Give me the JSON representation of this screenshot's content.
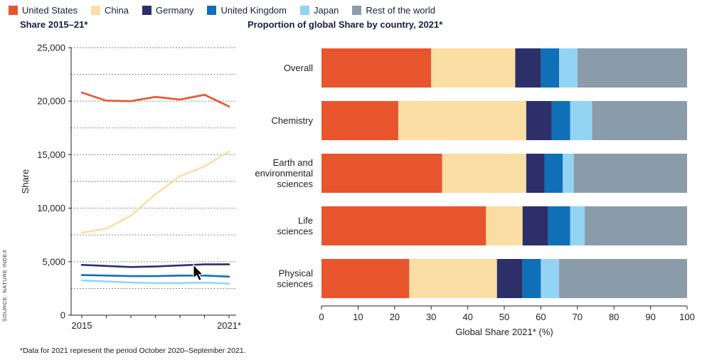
{
  "legend": {
    "items": [
      {
        "label": "United States",
        "color": "#E8552D"
      },
      {
        "label": "China",
        "color": "#FADEA3"
      },
      {
        "label": "Germany",
        "color": "#2C2F68"
      },
      {
        "label": "United Kingdom",
        "color": "#0F70B7"
      },
      {
        "label": "Japan",
        "color": "#93D4F4"
      },
      {
        "label": "Rest of the world",
        "color": "#8A9CAA"
      }
    ]
  },
  "source": "SOURCE: NATURE INDEX",
  "footnote": "*Data for 2021 represent the period October 2020–September 2021.",
  "chart_data": [
    {
      "type": "line",
      "title": "Share 2015–21*",
      "ylabel": "Share",
      "x": [
        2015,
        2016,
        2017,
        2018,
        2019,
        2020,
        2021
      ],
      "x_tick_labels": [
        "2015",
        "2021*"
      ],
      "ylim": [
        0,
        25000
      ],
      "y_ticks": [
        0,
        5000,
        10000,
        15000,
        20000,
        25000
      ],
      "grid_step": 2500,
      "grid": "dotted",
      "series": [
        {
          "name": "United States",
          "values": [
            20800,
            20050,
            20000,
            20400,
            20150,
            20600,
            19500
          ]
        },
        {
          "name": "China",
          "values": [
            7700,
            8100,
            9300,
            11300,
            13000,
            13900,
            15300
          ]
        },
        {
          "name": "Germany",
          "values": [
            4700,
            4600,
            4500,
            4550,
            4650,
            4750,
            4750
          ]
        },
        {
          "name": "United Kingdom",
          "values": [
            3750,
            3700,
            3650,
            3650,
            3700,
            3700,
            3600
          ]
        },
        {
          "name": "Japan",
          "values": [
            3250,
            3150,
            3050,
            3000,
            3000,
            3050,
            2950
          ]
        }
      ]
    },
    {
      "type": "stacked-bar-horizontal",
      "title": "Proportion of global Share by country, 2021*",
      "xlabel": "Global Share 2021* (%)",
      "xlim": [
        0,
        100
      ],
      "x_ticks": [
        0,
        10,
        20,
        30,
        40,
        50,
        60,
        70,
        80,
        90,
        100
      ],
      "categories": [
        "Overall",
        "Chemistry",
        "Earth and environmental sciences",
        "Life sciences",
        "Physical sciences"
      ],
      "series": [
        {
          "name": "United States",
          "values": [
            30,
            21,
            33,
            45,
            24
          ]
        },
        {
          "name": "China",
          "values": [
            23,
            35,
            23,
            10,
            24
          ]
        },
        {
          "name": "Germany",
          "values": [
            7,
            7,
            5,
            7,
            7
          ]
        },
        {
          "name": "United Kingdom",
          "values": [
            5,
            5,
            5,
            6,
            5
          ]
        },
        {
          "name": "Japan",
          "values": [
            5,
            6,
            3,
            4,
            5
          ]
        },
        {
          "name": "Rest of the world",
          "values": [
            30,
            26,
            31,
            28,
            35
          ]
        }
      ]
    }
  ]
}
